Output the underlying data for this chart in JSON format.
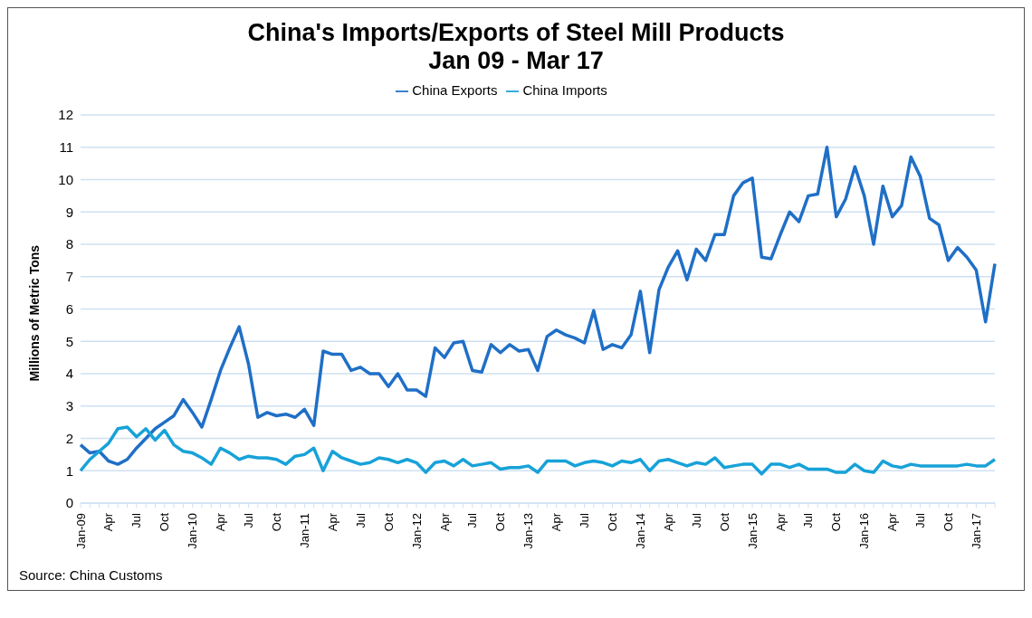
{
  "chart_data": {
    "type": "line",
    "title": "China's Imports/Exports of Steel Mill Products",
    "subtitle": "Jan 09 - Mar 17",
    "ylabel": "Millions of Metric Tons",
    "categories": [
      "Jan-09",
      null,
      null,
      "Apr",
      null,
      null,
      "Jul",
      null,
      null,
      "Oct",
      null,
      null,
      "Jan-10",
      null,
      null,
      "Apr",
      null,
      null,
      "Jul",
      null,
      null,
      "Oct",
      null,
      null,
      "Jan-11",
      null,
      null,
      "Apr",
      null,
      null,
      "Jul",
      null,
      null,
      "Oct",
      null,
      null,
      "Jan-12",
      null,
      null,
      "Apr",
      null,
      null,
      "Jul",
      null,
      null,
      "Oct",
      null,
      null,
      "Jan-13",
      null,
      null,
      "Apr",
      null,
      null,
      "Jul",
      null,
      null,
      "Oct",
      null,
      null,
      "Jan-14",
      null,
      null,
      "Apr",
      null,
      null,
      "Jul",
      null,
      null,
      "Oct",
      null,
      null,
      "Jan-15",
      null,
      null,
      "Apr",
      null,
      null,
      "Jul",
      null,
      null,
      "Oct",
      null,
      null,
      "Jan-16",
      null,
      null,
      "Apr",
      null,
      null,
      "Jul",
      null,
      null,
      "Oct",
      null,
      null,
      "Jan-17",
      null,
      null
    ],
    "series": [
      {
        "name": "China Exports",
        "color": "#1f6fc6",
        "values": [
          1.8,
          1.55,
          1.6,
          1.3,
          1.2,
          1.35,
          1.7,
          2.0,
          2.3,
          2.5,
          2.7,
          3.2,
          2.8,
          2.35,
          3.2,
          4.1,
          4.8,
          5.45,
          4.3,
          2.65,
          2.8,
          2.7,
          2.75,
          2.65,
          2.9,
          2.4,
          4.7,
          4.6,
          4.6,
          4.1,
          4.2,
          4.0,
          4.0,
          3.6,
          4.0,
          3.5,
          3.5,
          3.3,
          4.8,
          4.5,
          4.95,
          5.0,
          4.1,
          4.05,
          4.9,
          4.65,
          4.9,
          4.7,
          4.75,
          4.1,
          5.15,
          5.35,
          5.2,
          5.1,
          4.95,
          5.95,
          4.75,
          4.9,
          4.8,
          5.2,
          6.55,
          4.65,
          6.6,
          7.3,
          7.8,
          6.9,
          7.85,
          7.5,
          8.3,
          8.3,
          9.5,
          9.9,
          10.05,
          7.6,
          7.55,
          8.3,
          9.0,
          8.7,
          9.5,
          9.55,
          11.0,
          8.85,
          9.4,
          10.4,
          9.5,
          8.0,
          9.8,
          8.85,
          9.2,
          10.7,
          10.1,
          8.8,
          8.6,
          7.5,
          7.9,
          7.6,
          7.2,
          5.6,
          7.4
        ]
      },
      {
        "name": "China Imports",
        "color": "#17a2d8",
        "values": [
          1.0,
          1.35,
          1.6,
          1.85,
          2.3,
          2.35,
          2.05,
          2.3,
          1.95,
          2.25,
          1.8,
          1.6,
          1.55,
          1.4,
          1.2,
          1.7,
          1.55,
          1.35,
          1.45,
          1.4,
          1.4,
          1.35,
          1.2,
          1.45,
          1.5,
          1.7,
          1.0,
          1.6,
          1.4,
          1.3,
          1.2,
          1.25,
          1.4,
          1.35,
          1.25,
          1.35,
          1.25,
          0.95,
          1.25,
          1.3,
          1.15,
          1.35,
          1.15,
          1.2,
          1.25,
          1.05,
          1.1,
          1.1,
          1.15,
          0.95,
          1.3,
          1.3,
          1.3,
          1.15,
          1.25,
          1.3,
          1.25,
          1.15,
          1.3,
          1.25,
          1.35,
          1.0,
          1.3,
          1.35,
          1.25,
          1.15,
          1.25,
          1.2,
          1.4,
          1.1,
          1.15,
          1.2,
          1.2,
          0.9,
          1.2,
          1.2,
          1.1,
          1.2,
          1.05,
          1.05,
          1.05,
          0.95,
          0.95,
          1.2,
          1.0,
          0.95,
          1.3,
          1.15,
          1.1,
          1.2,
          1.15,
          1.15,
          1.15,
          1.15,
          1.15,
          1.2,
          1.15,
          1.15,
          1.35
        ]
      }
    ],
    "ylim": [
      0,
      12
    ],
    "yticks": [
      0,
      1,
      2,
      3,
      4,
      5,
      6,
      7,
      8,
      9,
      10,
      11,
      12
    ],
    "grid": "y",
    "legend": "top",
    "marker": "none",
    "line_style": "solid",
    "annotations": [
      "Source: China Customs"
    ]
  }
}
